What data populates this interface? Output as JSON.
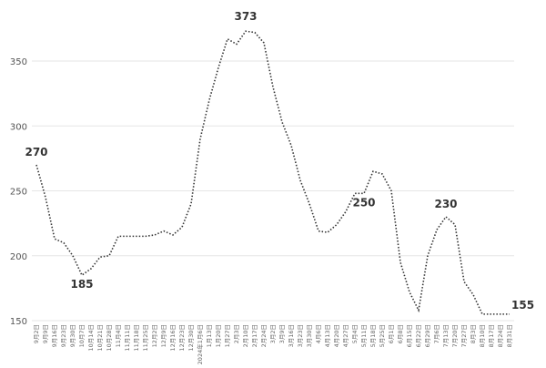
{
  "chart_data": {
    "type": "line",
    "categories": [
      "9月2日",
      "9月9日",
      "9月16日",
      "9月23日",
      "9月30日",
      "10月7日",
      "10月14日",
      "10月21日",
      "10月28日",
      "11月4日",
      "11月11日",
      "11月18日",
      "11月25日",
      "12月2日",
      "12月9日",
      "12月16日",
      "12月23日",
      "12月30日",
      "2024年1月6日",
      "1月13日",
      "1月20日",
      "1月27日",
      "2月3日",
      "2月10日",
      "2月17日",
      "2月24日",
      "3月2日",
      "3月9日",
      "3月16日",
      "3月23日",
      "3月30日",
      "4月6日",
      "4月13日",
      "4月20日",
      "4月27日",
      "5月4日",
      "5月11日",
      "5月18日",
      "5月25日",
      "6月1日",
      "6月8日",
      "6月15日",
      "6月22日",
      "6月29日",
      "7月6日",
      "7月13日",
      "7月20日",
      "7月27日",
      "8月3日",
      "8月10日",
      "8月17日",
      "8月24日",
      "8月31日"
    ],
    "series": [
      {
        "color": "#333333",
        "values": [
          270,
          245,
          213,
          210,
          200,
          185,
          190,
          199,
          200,
          215,
          215,
          215,
          215,
          216,
          219,
          216,
          222,
          240,
          290,
          320,
          345,
          367,
          363,
          373,
          372,
          364,
          330,
          303,
          285,
          258,
          240,
          219,
          218,
          224,
          234,
          248,
          248,
          265,
          263,
          250,
          195,
          172,
          158,
          200,
          220,
          230,
          224,
          180,
          170,
          155,
          155,
          155,
          155
        ]
      }
    ],
    "annotations": [
      "270",
      "185",
      "373",
      "250",
      "230",
      "155"
    ],
    "ylim": [
      150,
      373
    ],
    "yticks": [
      150,
      200,
      250,
      300,
      350
    ],
    "grid": true
  }
}
